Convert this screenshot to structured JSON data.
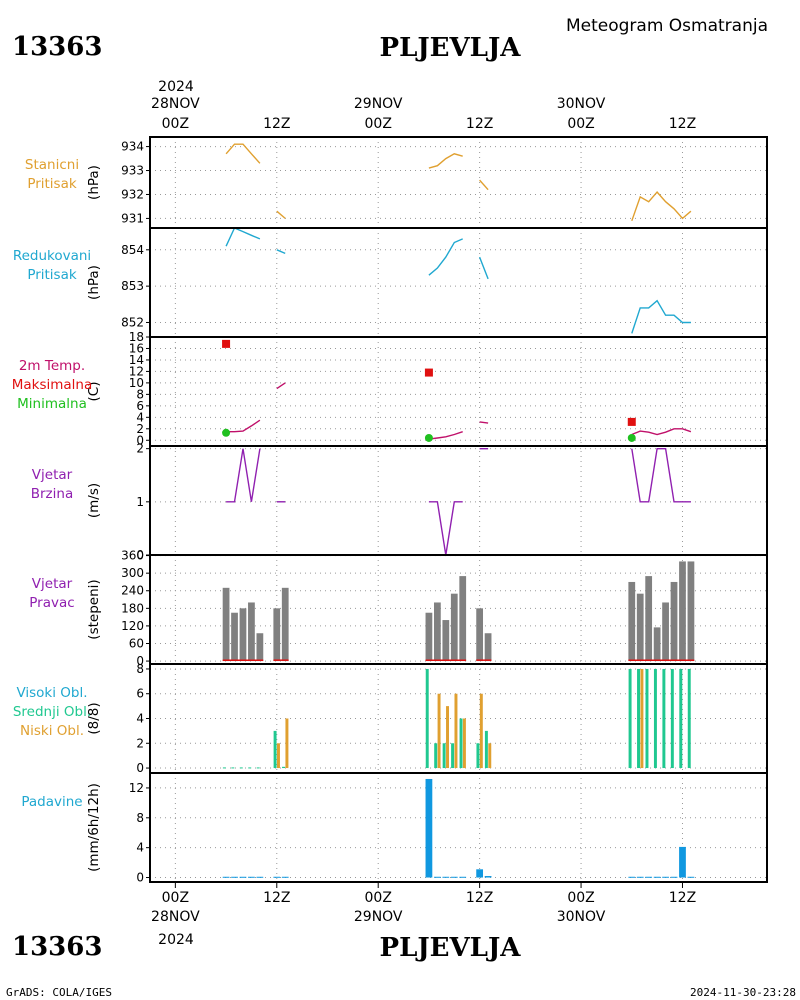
{
  "header": {
    "station_id": "13363",
    "station_name": "PLJEVLJA",
    "title": "Meteogram Osmatranja"
  },
  "footer": {
    "left": "GrADS: COLA/IGES",
    "right": "2024-11-30-23:28"
  },
  "time_axis": {
    "year": "2024",
    "days": [
      {
        "day": "28NOV",
        "hour0": "00Z",
        "hour12": "12Z",
        "t0": 0
      },
      {
        "day": "29NOV",
        "hour0": "00Z",
        "hour12": "12Z",
        "t0": 24
      },
      {
        "day": "30NOV",
        "hour0": "00Z",
        "hour12": "12Z",
        "t0": 48
      }
    ],
    "range_hours": [
      -3,
      70
    ]
  },
  "colors": {
    "orange": "#e0a030",
    "cyan": "#20a8d0",
    "magenta": "#c0106a",
    "red": "#e01010",
    "green": "#20c020",
    "purple": "#9020b0",
    "gray": "#808080",
    "teal": "#20c890",
    "blue": "#1098e0"
  },
  "chart_data": [
    {
      "id": "stanicni",
      "type": "line",
      "labels": [
        {
          "text": "Stanicni",
          "color": "#e0a030"
        },
        {
          "text": "Pritisak",
          "color": "#e0a030"
        }
      ],
      "unit": "(hPa)",
      "ylim": [
        930.6,
        934.4
      ],
      "yticks": [
        931,
        932,
        933,
        934
      ],
      "series": [
        {
          "color": "#e0a030",
          "segments": [
            [
              [
                6,
                933.7
              ],
              [
                7,
                934.1
              ],
              [
                8,
                934.1
              ],
              [
                9,
                933.7
              ],
              [
                10,
                933.3
              ]
            ],
            [
              [
                12,
                931.3
              ],
              [
                13,
                931.0
              ]
            ],
            [
              [
                30,
                933.1
              ],
              [
                31,
                933.2
              ],
              [
                32,
                933.5
              ],
              [
                33,
                933.7
              ],
              [
                34,
                933.6
              ]
            ],
            [
              [
                36,
                932.6
              ],
              [
                37,
                932.2
              ]
            ],
            [
              [
                54,
                930.9
              ],
              [
                55,
                931.9
              ],
              [
                56,
                931.7
              ],
              [
                57,
                932.1
              ],
              [
                58,
                931.7
              ],
              [
                59,
                931.4
              ],
              [
                60,
                931.0
              ],
              [
                61,
                931.3
              ]
            ]
          ]
        }
      ]
    },
    {
      "id": "redukovani",
      "type": "line",
      "labels": [
        {
          "text": "Redukovani",
          "color": "#20a8d0"
        },
        {
          "text": "Pritisak",
          "color": "#20a8d0"
        }
      ],
      "unit": "(hPa)",
      "ylim": [
        851.6,
        854.6
      ],
      "yticks": [
        852,
        853,
        854
      ],
      "series": [
        {
          "color": "#20a8d0",
          "segments": [
            [
              [
                6,
                854.1
              ],
              [
                7,
                854.6
              ],
              [
                8,
                854.5
              ],
              [
                9,
                854.4
              ],
              [
                10,
                854.3
              ]
            ],
            [
              [
                12,
                854.0
              ],
              [
                13,
                853.9
              ]
            ],
            [
              [
                30,
                853.3
              ],
              [
                31,
                853.5
              ],
              [
                32,
                853.8
              ],
              [
                33,
                854.2
              ],
              [
                34,
                854.3
              ]
            ],
            [
              [
                36,
                853.8
              ],
              [
                37,
                853.2
              ]
            ],
            [
              [
                54,
                851.7
              ],
              [
                55,
                852.4
              ],
              [
                56,
                852.4
              ],
              [
                57,
                852.6
              ],
              [
                58,
                852.2
              ],
              [
                59,
                852.2
              ],
              [
                60,
                852.0
              ],
              [
                61,
                852.0
              ]
            ]
          ]
        }
      ]
    },
    {
      "id": "temp",
      "type": "line",
      "labels": [
        {
          "text": "2m Temp.",
          "color": "#c0106a"
        },
        {
          "text": "Maksimalna",
          "color": "#e01010"
        },
        {
          "text": "Minimalna",
          "color": "#20c020"
        }
      ],
      "unit": "(C)",
      "ylim": [
        -1,
        18
      ],
      "yticks": [
        0,
        2,
        4,
        6,
        8,
        10,
        12,
        14,
        16,
        18
      ],
      "series": [
        {
          "color": "#c0106a",
          "segments": [
            [
              [
                6,
                1.5
              ],
              [
                7,
                1.5
              ],
              [
                8,
                1.6
              ],
              [
                9,
                2.5
              ],
              [
                10,
                3.5
              ]
            ],
            [
              [
                12,
                9.0
              ],
              [
                13,
                10.0
              ]
            ],
            [
              [
                30,
                0.2
              ],
              [
                31,
                0.4
              ],
              [
                32,
                0.6
              ],
              [
                33,
                1.0
              ],
              [
                34,
                1.5
              ]
            ],
            [
              [
                36,
                3.2
              ],
              [
                37,
                3.0
              ]
            ],
            [
              [
                54,
                1.0
              ],
              [
                55,
                1.6
              ],
              [
                56,
                1.4
              ],
              [
                57,
                1.0
              ],
              [
                58,
                1.4
              ],
              [
                59,
                2.0
              ],
              [
                60,
                2.0
              ],
              [
                61,
                1.5
              ]
            ]
          ]
        }
      ],
      "markers": [
        {
          "shape": "square",
          "color": "#e01010",
          "points": [
            [
              6,
              16.8
            ],
            [
              30,
              11.8
            ],
            [
              54,
              3.2
            ]
          ]
        },
        {
          "shape": "circle",
          "color": "#20c020",
          "points": [
            [
              6,
              1.3
            ],
            [
              30,
              0.4
            ],
            [
              54,
              0.4
            ]
          ]
        }
      ]
    },
    {
      "id": "brzina",
      "type": "line",
      "labels": [
        {
          "text": "Vjetar",
          "color": "#9020b0"
        },
        {
          "text": "Brzina",
          "color": "#9020b0"
        }
      ],
      "unit": "(m/s)",
      "ylim": [
        0,
        2.05
      ],
      "yticks": [
        0,
        1,
        2
      ],
      "series": [
        {
          "color": "#9020b0",
          "segments": [
            [
              [
                6,
                1
              ],
              [
                7,
                1
              ],
              [
                8,
                2
              ],
              [
                9,
                1
              ],
              [
                10,
                2
              ]
            ],
            [
              [
                12,
                1
              ],
              [
                13,
                1
              ]
            ],
            [
              [
                30,
                1
              ],
              [
                31,
                1
              ],
              [
                32,
                0
              ],
              [
                33,
                1
              ],
              [
                34,
                1
              ]
            ],
            [
              [
                36,
                2
              ],
              [
                37,
                2
              ]
            ],
            [
              [
                54,
                2
              ],
              [
                55,
                1
              ],
              [
                56,
                1
              ],
              [
                57,
                2
              ],
              [
                58,
                2
              ],
              [
                59,
                1
              ],
              [
                60,
                1
              ],
              [
                61,
                1
              ]
            ]
          ]
        }
      ]
    },
    {
      "id": "pravac",
      "type": "bar",
      "labels": [
        {
          "text": "Vjetar",
          "color": "#9020b0"
        },
        {
          "text": "Pravac",
          "color": "#9020b0"
        }
      ],
      "unit": "(stepeni)",
      "ylim": [
        -10,
        362
      ],
      "yticks": [
        0,
        60,
        120,
        180,
        240,
        300,
        360
      ],
      "bar_width_hours": 0.8,
      "series": [
        {
          "color": "#808080",
          "x": [
            6,
            7,
            8,
            9,
            10,
            12,
            13,
            30,
            31,
            32,
            33,
            34,
            36,
            37,
            54,
            55,
            56,
            57,
            58,
            59,
            60,
            61
          ],
          "values": [
            250,
            165,
            180,
            200,
            95,
            180,
            250,
            165,
            200,
            140,
            230,
            290,
            180,
            95,
            270,
            230,
            290,
            115,
            200,
            270,
            340,
            340
          ]
        }
      ],
      "baseline": {
        "color": "#e01010",
        "segments": [
          [
            6,
            10
          ],
          [
            12,
            13
          ],
          [
            30,
            34
          ],
          [
            36,
            37
          ],
          [
            54,
            61
          ]
        ]
      }
    },
    {
      "id": "oblaci",
      "type": "bar",
      "labels": [
        {
          "text": "Visoki Obl.",
          "color": "#20a8d0"
        },
        {
          "text": "Srednji Obl.",
          "color": "#20c890"
        },
        {
          "text": "Niski Obl.",
          "color": "#e0a030"
        }
      ],
      "unit": "(8/8)",
      "ylim": [
        -0.4,
        8.4
      ],
      "yticks": [
        0,
        2,
        4,
        6,
        8
      ],
      "series": [
        {
          "name": "Srednji Obl.",
          "color": "#20c890",
          "offset": -0.2,
          "width": 0.35,
          "x": [
            6,
            7,
            8,
            9,
            10,
            12,
            13,
            30,
            31,
            32,
            33,
            34,
            36,
            37,
            54,
            55,
            56,
            57,
            58,
            59,
            60,
            61
          ],
          "values": [
            0.05,
            0.05,
            0.05,
            0.05,
            0.05,
            3,
            0.1,
            8,
            2,
            2,
            2,
            4,
            2,
            3,
            8,
            8,
            8,
            8,
            8,
            8,
            8,
            8
          ]
        },
        {
          "name": "Niski Obl.",
          "color": "#e0a030",
          "offset": 0.2,
          "width": 0.35,
          "x": [
            12,
            13,
            30,
            31,
            32,
            33,
            34,
            36,
            37,
            54,
            55,
            56,
            57,
            58,
            59,
            60,
            61
          ],
          "values": [
            2,
            4,
            0,
            6,
            5,
            6,
            4,
            6,
            2,
            0,
            8,
            0,
            0,
            0,
            0,
            0,
            0
          ]
        }
      ]
    },
    {
      "id": "padavine",
      "type": "bar",
      "labels": [
        {
          "text": "Padavine",
          "color": "#20a8d0"
        }
      ],
      "unit": "(mm/6h/12h)",
      "ylim": [
        -0.6,
        14
      ],
      "yticks": [
        0,
        4,
        8,
        12
      ],
      "series": [
        {
          "color": "#1098e0",
          "width": 0.8,
          "x": [
            6,
            7,
            8,
            9,
            10,
            12,
            13,
            30,
            31,
            32,
            33,
            34,
            36,
            37,
            54,
            55,
            56,
            57,
            58,
            59,
            60,
            61
          ],
          "values": [
            0.1,
            0.1,
            0.1,
            0.1,
            0.1,
            0.1,
            0.1,
            13.2,
            0.1,
            0.1,
            0.1,
            0.1,
            1.1,
            0.2,
            0.1,
            0.1,
            0.1,
            0.1,
            0.1,
            0.1,
            4.1,
            0.1
          ]
        }
      ]
    }
  ]
}
